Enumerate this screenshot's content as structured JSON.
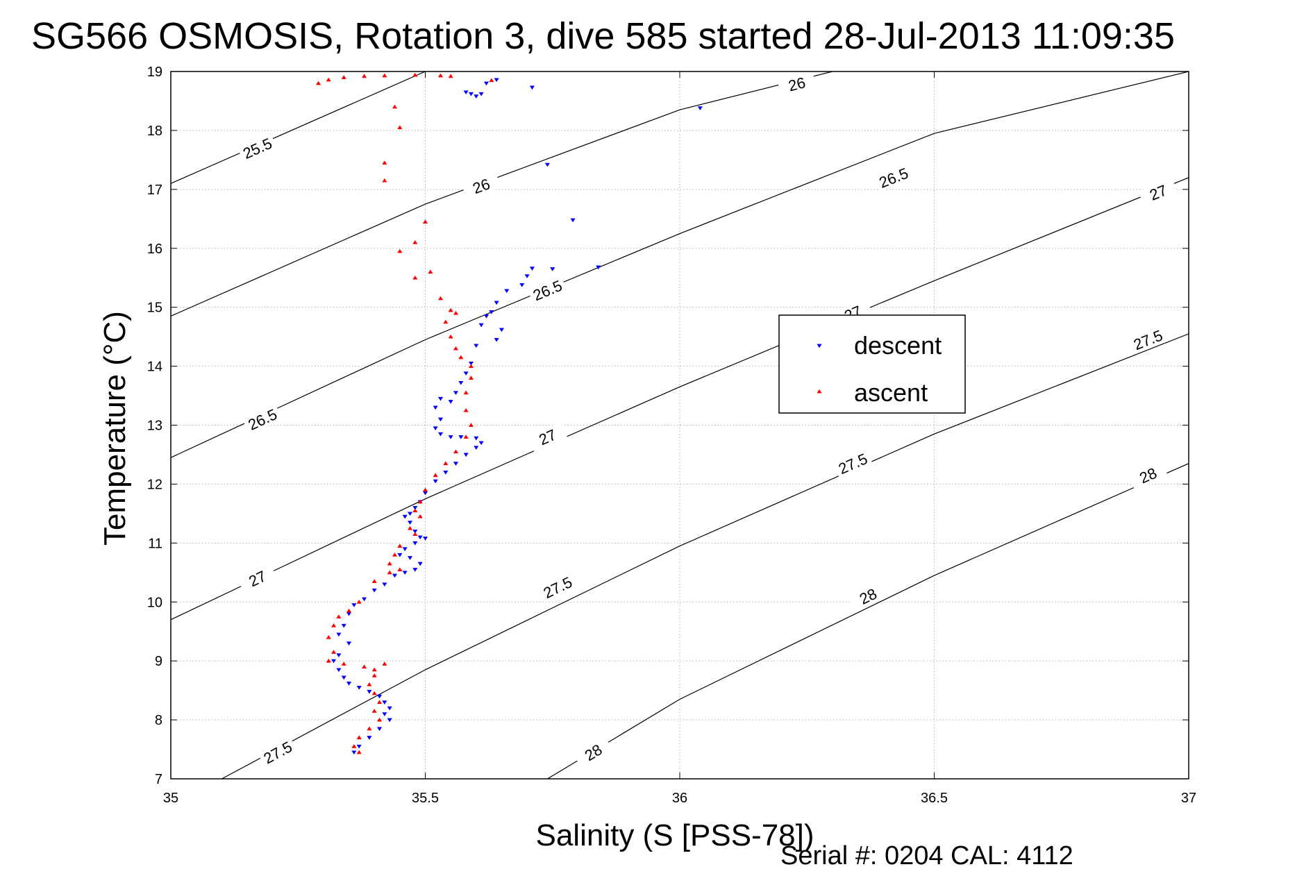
{
  "chart_data": {
    "type": "scatter",
    "title": "SG566 OSMOSIS, Rotation 3, dive 585 started 28-Jul-2013 11:09:35",
    "xlabel": "Salinity (S [PSS-78])",
    "ylabel": "Temperature (°C)",
    "xlim": [
      35,
      37
    ],
    "ylim": [
      7,
      19
    ],
    "xticks": [
      35,
      35.5,
      36,
      36.5,
      37
    ],
    "xtick_labels": [
      "35",
      "35.5",
      "36",
      "36.5",
      "37"
    ],
    "yticks": [
      7,
      8,
      9,
      10,
      11,
      12,
      13,
      14,
      15,
      16,
      17,
      18,
      19
    ],
    "ytick_labels": [
      "7",
      "8",
      "9",
      "10",
      "11",
      "12",
      "13",
      "14",
      "15",
      "16",
      "17",
      "18",
      "19"
    ],
    "grid": true,
    "legend_position": "right-center",
    "footer": "Serial #: 0204  CAL: 4112",
    "contours": [
      {
        "level": "25.5",
        "points": [
          [
            35.0,
            17.1
          ],
          [
            35.5,
            19.0
          ]
        ],
        "labels": [
          [
            35.17,
            17.7
          ]
        ]
      },
      {
        "level": "26",
        "points": [
          [
            35.0,
            14.85
          ],
          [
            35.5,
            16.75
          ],
          [
            36.0,
            18.35
          ],
          [
            36.3,
            19.0
          ]
        ],
        "labels": [
          [
            35.61,
            17.06
          ],
          [
            36.23,
            18.79
          ]
        ]
      },
      {
        "level": "26.5",
        "points": [
          [
            35.0,
            12.45
          ],
          [
            35.5,
            14.45
          ],
          [
            36.0,
            16.25
          ],
          [
            36.5,
            17.95
          ],
          [
            37.0,
            19.0
          ]
        ],
        "labels": [
          [
            35.18,
            13.1
          ],
          [
            35.74,
            15.29
          ],
          [
            36.42,
            17.2
          ]
        ]
      },
      {
        "level": "27",
        "points": [
          [
            35.0,
            9.7
          ],
          [
            35.5,
            11.75
          ],
          [
            36.0,
            13.65
          ],
          [
            36.5,
            15.45
          ],
          [
            37.0,
            17.2
          ]
        ],
        "labels": [
          [
            35.17,
            10.4
          ],
          [
            35.74,
            12.8
          ],
          [
            36.34,
            14.9
          ],
          [
            36.94,
            16.95
          ]
        ]
      },
      {
        "level": "27.5",
        "points": [
          [
            35.1,
            7.0
          ],
          [
            35.5,
            8.85
          ],
          [
            36.0,
            10.95
          ],
          [
            36.5,
            12.85
          ],
          [
            37.0,
            14.55
          ]
        ],
        "labels": [
          [
            35.21,
            7.45
          ],
          [
            35.76,
            10.25
          ],
          [
            36.34,
            12.35
          ],
          [
            36.92,
            14.45
          ]
        ]
      },
      {
        "level": "28",
        "points": [
          [
            35.74,
            7.0
          ],
          [
            36.0,
            8.35
          ],
          [
            36.5,
            10.45
          ],
          [
            37.0,
            12.35
          ]
        ],
        "labels": [
          [
            35.83,
            7.45
          ],
          [
            36.37,
            10.1
          ],
          [
            36.92,
            12.15
          ]
        ]
      }
    ],
    "series": [
      {
        "name": "descent",
        "color": "#0000ff",
        "marker": "triangle-down",
        "points": [
          [
            35.58,
            18.65
          ],
          [
            35.59,
            18.62
          ],
          [
            35.61,
            18.62
          ],
          [
            35.6,
            18.58
          ],
          [
            35.62,
            18.8
          ],
          [
            35.64,
            18.86
          ],
          [
            35.71,
            18.73
          ],
          [
            36.04,
            18.38
          ],
          [
            35.74,
            17.42
          ],
          [
            35.79,
            16.48
          ],
          [
            35.84,
            15.68
          ],
          [
            35.75,
            15.65
          ],
          [
            35.71,
            15.66
          ],
          [
            35.7,
            15.53
          ],
          [
            35.69,
            15.38
          ],
          [
            35.66,
            15.28
          ],
          [
            35.64,
            15.08
          ],
          [
            35.63,
            14.92
          ],
          [
            35.62,
            14.85
          ],
          [
            35.61,
            14.7
          ],
          [
            35.65,
            14.62
          ],
          [
            35.64,
            14.45
          ],
          [
            35.6,
            14.35
          ],
          [
            35.59,
            14.05
          ],
          [
            35.58,
            13.88
          ],
          [
            35.57,
            13.72
          ],
          [
            35.56,
            13.55
          ],
          [
            35.55,
            13.4
          ],
          [
            35.53,
            13.45
          ],
          [
            35.52,
            13.3
          ],
          [
            35.53,
            13.1
          ],
          [
            35.52,
            12.95
          ],
          [
            35.53,
            12.85
          ],
          [
            35.55,
            12.8
          ],
          [
            35.57,
            12.8
          ],
          [
            35.6,
            12.78
          ],
          [
            35.61,
            12.7
          ],
          [
            35.6,
            12.62
          ],
          [
            35.58,
            12.5
          ],
          [
            35.56,
            12.35
          ],
          [
            35.54,
            12.2
          ],
          [
            35.52,
            12.05
          ],
          [
            35.5,
            11.85
          ],
          [
            35.49,
            11.7
          ],
          [
            35.48,
            11.6
          ],
          [
            35.47,
            11.5
          ],
          [
            35.46,
            11.45
          ],
          [
            35.47,
            11.35
          ],
          [
            35.48,
            11.2
          ],
          [
            35.49,
            11.1
          ],
          [
            35.5,
            11.08
          ],
          [
            35.48,
            11.0
          ],
          [
            35.46,
            10.9
          ],
          [
            35.45,
            10.8
          ],
          [
            35.47,
            10.75
          ],
          [
            35.49,
            10.65
          ],
          [
            35.48,
            10.55
          ],
          [
            35.46,
            10.5
          ],
          [
            35.44,
            10.45
          ],
          [
            35.42,
            10.3
          ],
          [
            35.4,
            10.2
          ],
          [
            35.38,
            10.05
          ],
          [
            35.36,
            9.95
          ],
          [
            35.35,
            9.8
          ],
          [
            35.34,
            9.6
          ],
          [
            35.33,
            9.45
          ],
          [
            35.35,
            9.3
          ],
          [
            35.33,
            9.1
          ],
          [
            35.32,
            9.0
          ],
          [
            35.33,
            8.85
          ],
          [
            35.34,
            8.72
          ],
          [
            35.35,
            8.62
          ],
          [
            35.37,
            8.55
          ],
          [
            35.39,
            8.48
          ],
          [
            35.41,
            8.4
          ],
          [
            35.42,
            8.3
          ],
          [
            35.43,
            8.2
          ],
          [
            35.42,
            8.1
          ],
          [
            35.43,
            8.0
          ],
          [
            35.41,
            7.85
          ],
          [
            35.39,
            7.7
          ],
          [
            35.37,
            7.55
          ],
          [
            35.36,
            7.45
          ]
        ]
      },
      {
        "name": "ascent",
        "color": "#ff0000",
        "marker": "triangle-up",
        "points": [
          [
            35.29,
            18.8
          ],
          [
            35.31,
            18.86
          ],
          [
            35.34,
            18.9
          ],
          [
            35.38,
            18.92
          ],
          [
            35.42,
            18.93
          ],
          [
            35.48,
            18.94
          ],
          [
            35.53,
            18.93
          ],
          [
            35.55,
            18.92
          ],
          [
            35.63,
            18.85
          ],
          [
            35.44,
            18.4
          ],
          [
            35.45,
            18.05
          ],
          [
            35.42,
            17.45
          ],
          [
            35.42,
            17.15
          ],
          [
            35.5,
            16.45
          ],
          [
            35.48,
            16.1
          ],
          [
            35.45,
            15.95
          ],
          [
            35.51,
            15.6
          ],
          [
            35.48,
            15.5
          ],
          [
            35.53,
            15.15
          ],
          [
            35.55,
            14.95
          ],
          [
            35.56,
            14.9
          ],
          [
            35.54,
            14.75
          ],
          [
            35.55,
            14.5
          ],
          [
            35.56,
            14.3
          ],
          [
            35.57,
            14.15
          ],
          [
            35.59,
            14.0
          ],
          [
            35.59,
            13.8
          ],
          [
            35.58,
            13.55
          ],
          [
            35.58,
            13.25
          ],
          [
            35.59,
            13.0
          ],
          [
            35.58,
            12.8
          ],
          [
            35.56,
            12.55
          ],
          [
            35.54,
            12.35
          ],
          [
            35.52,
            12.15
          ],
          [
            35.5,
            11.9
          ],
          [
            35.49,
            11.7
          ],
          [
            35.48,
            11.55
          ],
          [
            35.49,
            11.45
          ],
          [
            35.47,
            11.25
          ],
          [
            35.48,
            11.15
          ],
          [
            35.45,
            10.95
          ],
          [
            35.44,
            10.8
          ],
          [
            35.43,
            10.65
          ],
          [
            35.45,
            10.55
          ],
          [
            35.43,
            10.5
          ],
          [
            35.4,
            10.35
          ],
          [
            35.37,
            10.0
          ],
          [
            35.35,
            9.85
          ],
          [
            35.33,
            9.75
          ],
          [
            35.32,
            9.6
          ],
          [
            35.31,
            9.4
          ],
          [
            35.32,
            9.15
          ],
          [
            35.31,
            9.0
          ],
          [
            35.34,
            8.95
          ],
          [
            35.38,
            8.9
          ],
          [
            35.4,
            8.85
          ],
          [
            35.42,
            8.95
          ],
          [
            35.4,
            8.75
          ],
          [
            35.39,
            8.6
          ],
          [
            35.4,
            8.45
          ],
          [
            35.41,
            8.3
          ],
          [
            35.4,
            8.15
          ],
          [
            35.41,
            8.0
          ],
          [
            35.39,
            7.85
          ],
          [
            35.37,
            7.7
          ],
          [
            35.36,
            7.55
          ],
          [
            35.37,
            7.45
          ]
        ]
      }
    ]
  }
}
